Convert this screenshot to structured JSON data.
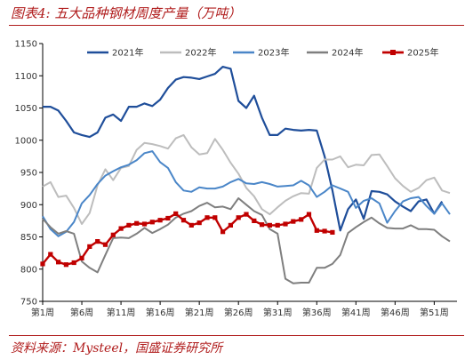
{
  "header": {
    "title": "图表4:  五大品种钢材周度产量（万吨）"
  },
  "footer": {
    "source": "资料来源：Mysteel，国盛证券研究所"
  },
  "chart_data": {
    "type": "line",
    "title": "图表4:  五大品种钢材周度产量（万吨）",
    "xlabel": "",
    "ylabel": "",
    "ylim": [
      750,
      1150
    ],
    "yticks": [
      750,
      800,
      850,
      900,
      950,
      1000,
      1050,
      1100,
      1150
    ],
    "xrange": [
      1,
      53
    ],
    "xticks": [
      1,
      6,
      11,
      16,
      21,
      26,
      31,
      36,
      41,
      46,
      51
    ],
    "xtick_labels": [
      "第1周",
      "第6周",
      "第11周",
      "第16周",
      "第21周",
      "第26周",
      "第31周",
      "第36周",
      "第41周",
      "第46周",
      "第51周"
    ],
    "grid": false,
    "legend_position": "top",
    "series": [
      {
        "name": "2021年",
        "color": "#1f4e9a",
        "width": 2.2,
        "x": [
          1,
          2,
          3,
          4,
          5,
          6,
          7,
          8,
          9,
          10,
          11,
          12,
          13,
          14,
          15,
          16,
          17,
          18,
          19,
          20,
          21,
          22,
          23,
          24,
          25,
          26,
          27,
          28,
          29,
          30,
          31,
          32,
          33,
          34,
          35,
          36,
          37,
          38,
          39,
          40,
          41,
          42,
          43,
          44,
          45,
          46,
          47,
          48,
          49,
          50,
          51,
          52,
          53
        ],
        "values": [
          1052,
          1052,
          1046,
          1030,
          1012,
          1008,
          1005,
          1012,
          1035,
          1040,
          1030,
          1052,
          1052,
          1057,
          1053,
          1063,
          1081,
          1094,
          1098,
          1097,
          1095,
          1099,
          1103,
          1114,
          1111,
          1061,
          1050,
          1069,
          1035,
          1008,
          1008,
          1018,
          1016,
          1015,
          1016,
          1015,
          975,
          922,
          860,
          893,
          908,
          878,
          921,
          920,
          916,
          905,
          897,
          890,
          905,
          908,
          886,
          905,
          null
        ]
      },
      {
        "name": "2022年",
        "color": "#bdbdbd",
        "width": 2,
        "x": [
          1,
          2,
          3,
          4,
          5,
          6,
          7,
          8,
          9,
          10,
          11,
          12,
          13,
          14,
          15,
          16,
          17,
          18,
          19,
          20,
          21,
          22,
          23,
          24,
          25,
          26,
          27,
          28,
          29,
          30,
          31,
          32,
          33,
          34,
          35,
          36,
          37,
          38,
          39,
          40,
          41,
          42,
          43,
          44,
          45,
          46,
          47,
          48,
          49,
          50,
          51,
          52,
          53
        ],
        "values": [
          928,
          935,
          912,
          914,
          895,
          870,
          887,
          930,
          955,
          938,
          957,
          960,
          985,
          996,
          994,
          991,
          987,
          1003,
          1008,
          989,
          978,
          980,
          1002,
          985,
          965,
          948,
          926,
          913,
          893,
          885,
          896,
          906,
          913,
          918,
          917,
          957,
          970,
          970,
          975,
          958,
          962,
          961,
          977,
          978,
          960,
          941,
          929,
          920,
          926,
          938,
          942,
          922,
          918
        ]
      },
      {
        "name": "2023年",
        "color": "#4a86c8",
        "width": 2,
        "x": [
          1,
          2,
          3,
          4,
          5,
          6,
          7,
          8,
          9,
          10,
          11,
          12,
          13,
          14,
          15,
          16,
          17,
          18,
          19,
          20,
          21,
          22,
          23,
          24,
          25,
          26,
          27,
          28,
          29,
          30,
          31,
          32,
          33,
          34,
          35,
          36,
          37,
          38,
          39,
          40,
          41,
          42,
          43,
          44,
          45,
          46,
          47,
          48,
          49,
          50,
          51,
          52,
          53
        ],
        "values": [
          882,
          862,
          851,
          858,
          873,
          902,
          915,
          932,
          945,
          952,
          958,
          962,
          969,
          980,
          983,
          966,
          957,
          935,
          922,
          920,
          927,
          925,
          925,
          928,
          935,
          940,
          933,
          932,
          935,
          932,
          928,
          929,
          930,
          937,
          930,
          912,
          920,
          930,
          925,
          920,
          895,
          906,
          910,
          902,
          872,
          890,
          905,
          910,
          912,
          898,
          886,
          902,
          885
        ]
      },
      {
        "name": "2024年",
        "color": "#7f7f7f",
        "width": 2,
        "x": [
          1,
          2,
          3,
          4,
          5,
          6,
          7,
          8,
          9,
          10,
          11,
          12,
          13,
          14,
          15,
          16,
          17,
          18,
          19,
          20,
          21,
          22,
          23,
          24,
          25,
          26,
          27,
          28,
          29,
          30,
          31,
          32,
          33,
          34,
          35,
          36,
          37,
          38,
          39,
          40,
          41,
          42,
          43,
          44,
          45,
          46,
          47,
          48,
          49,
          50,
          51,
          52,
          53
        ],
        "values": [
          878,
          865,
          855,
          859,
          855,
          812,
          802,
          795,
          822,
          848,
          849,
          848,
          855,
          864,
          856,
          862,
          869,
          880,
          886,
          890,
          898,
          903,
          896,
          897,
          893,
          910,
          900,
          890,
          884,
          862,
          855,
          785,
          778,
          779,
          779,
          802,
          802,
          808,
          822,
          856,
          865,
          873,
          880,
          871,
          864,
          863,
          863,
          868,
          862,
          862,
          861,
          851,
          843
        ]
      },
      {
        "name": "2025年",
        "color": "#c00000",
        "width": 2.4,
        "marker": "square",
        "x": [
          1,
          2,
          3,
          4,
          5,
          6,
          7,
          8,
          9,
          10,
          11,
          12,
          13,
          14,
          15,
          16,
          17,
          18,
          19,
          20,
          21,
          22,
          23,
          24,
          25,
          26,
          27,
          28,
          29,
          30,
          31,
          32,
          33,
          34,
          35,
          36,
          37,
          38,
          39,
          40,
          41,
          42,
          43,
          44,
          45,
          46,
          47,
          48,
          49,
          50,
          51,
          52,
          53
        ],
        "values": [
          808,
          823,
          811,
          807,
          810,
          817,
          835,
          843,
          838,
          853,
          863,
          868,
          871,
          870,
          873,
          876,
          879,
          886,
          876,
          868,
          872,
          880,
          880,
          858,
          868,
          880,
          885,
          875,
          869,
          868,
          868,
          870,
          874,
          877,
          885,
          860,
          859,
          857,
          null,
          null,
          null,
          null,
          null,
          null,
          null,
          null,
          null,
          null,
          null,
          null,
          null,
          null,
          null
        ]
      }
    ]
  }
}
